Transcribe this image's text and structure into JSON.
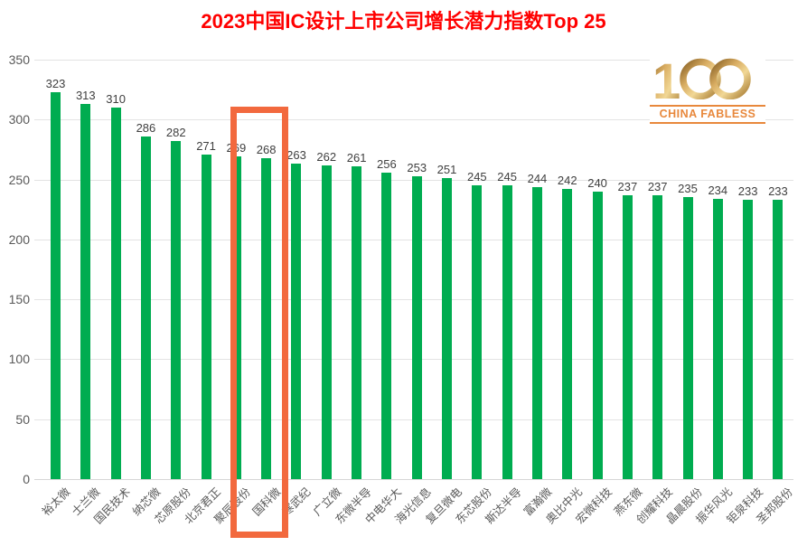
{
  "title": "2023中国IC设计上市公司增长潜力指数Top 25",
  "logo": {
    "digit": "1",
    "number": "100",
    "caption": "CHINA FABLESS"
  },
  "highlight": {
    "company": "国科微",
    "value": 268
  },
  "colors": {
    "title": "#FF0000",
    "bar": "#00AC50",
    "highlight_border": "#F2693E",
    "gridline": "#E3E3E3",
    "axis_line": "#D6D6D6",
    "y_label": "#595959",
    "x_label": "#595959",
    "value_label": "#404040",
    "logo_accent": "#E8883C",
    "logo_gold_dark": "#8A6226",
    "logo_gold_mid": "#D9AD62",
    "logo_gold_light": "#F1D795"
  },
  "chart_data": {
    "type": "bar",
    "title": "2023中国IC设计上市公司增长潜力指数Top 25",
    "categories": [
      "裕太微",
      "士兰微",
      "国民技术",
      "纳芯微",
      "芯原股份",
      "北京君正",
      "聚辰股份",
      "国科微",
      "寒武纪",
      "广立微",
      "东微半导",
      "中电华大",
      "海光信息",
      "复旦微电",
      "东芯股份",
      "斯达半导",
      "富瀚微",
      "奥比中光",
      "宏微科技",
      "燕东微",
      "创耀科技",
      "晶晨股份",
      "振华风光",
      "钜泉科技",
      "圣邦股份"
    ],
    "values": [
      323,
      313,
      310,
      286,
      282,
      271,
      269,
      268,
      263,
      262,
      261,
      256,
      253,
      251,
      245,
      245,
      244,
      242,
      240,
      237,
      237,
      235,
      234,
      233,
      233
    ],
    "xlabel": "",
    "ylabel": "",
    "ylim": [
      0,
      350
    ],
    "yticks": [
      0,
      50,
      100,
      150,
      200,
      250,
      300,
      350
    ],
    "grid": true,
    "legend": "none",
    "bar_color": "#00AC50",
    "highlighted_category": "国科微",
    "data_labels": true,
    "x_label_rotation": -45
  }
}
